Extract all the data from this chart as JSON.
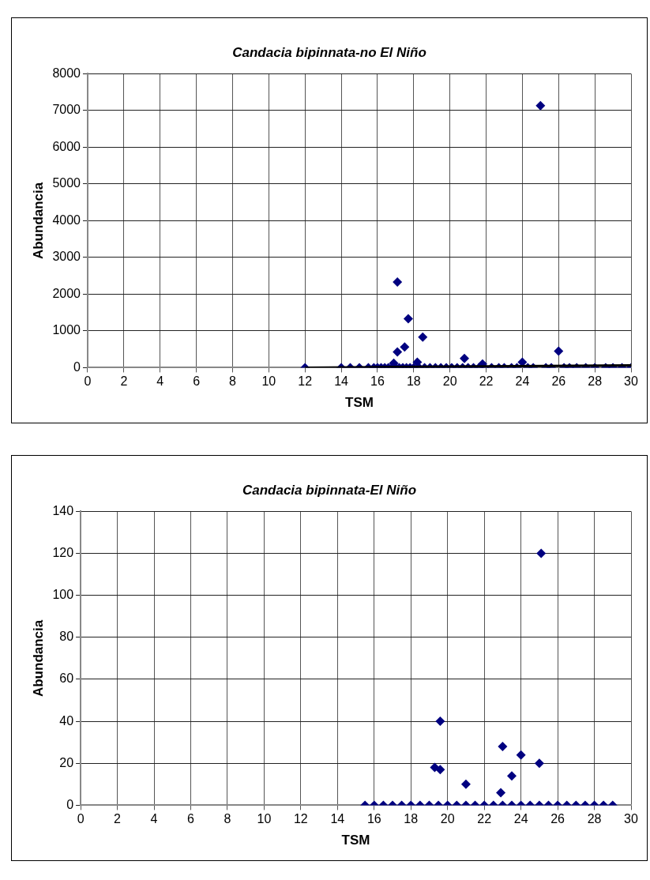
{
  "chart_data": [
    {
      "type": "scatter",
      "title": "Candacia bipinnata-no El Niño",
      "xlabel": "TSM",
      "ylabel": "Abundancia",
      "grid": true,
      "xlim": [
        0,
        30
      ],
      "xticks": [
        0,
        2,
        4,
        6,
        8,
        10,
        12,
        14,
        16,
        18,
        20,
        22,
        24,
        26,
        28,
        30
      ],
      "ylim": [
        0,
        8000
      ],
      "yticks": [
        0,
        1000,
        2000,
        3000,
        4000,
        5000,
        6000,
        7000,
        8000
      ],
      "series": [
        {
          "color": "#000080",
          "marker": "diamond",
          "x": [
            12,
            14,
            14.5,
            15,
            15.5,
            15.8,
            16,
            16.2,
            16.4,
            16.6,
            16.8,
            17,
            17.2,
            17.4,
            17.6,
            17.8,
            18,
            18.3,
            18.6,
            18.9,
            19.2,
            19.5,
            19.8,
            20.1,
            20.4,
            20.7,
            21,
            21.3,
            21.6,
            21.9,
            22.3,
            22.7,
            23,
            23.4,
            23.7,
            24.3,
            24.6,
            25.3,
            25.6,
            26.3,
            26.6,
            27,
            27.5,
            28,
            28.6,
            29,
            29.5,
            30,
            25,
            17.1,
            17.7,
            18.5,
            17.5,
            17.1,
            26,
            20.8,
            24,
            18.2,
            21.8,
            16.9
          ],
          "values": [
            0,
            0,
            0,
            0,
            0,
            0,
            0,
            0,
            0,
            0,
            0,
            0,
            0,
            0,
            0,
            0,
            0,
            0,
            0,
            0,
            0,
            0,
            0,
            0,
            0,
            0,
            0,
            0,
            0,
            0,
            0,
            0,
            0,
            0,
            0,
            0,
            0,
            0,
            0,
            0,
            0,
            0,
            0,
            0,
            0,
            0,
            0,
            0,
            7130,
            2330,
            1330,
            830,
            560,
            430,
            450,
            250,
            150,
            150,
            100,
            120
          ]
        },
        {
          "type": "line",
          "color": "#000000",
          "marker": "none",
          "x": [
            12,
            30
          ],
          "values": [
            0,
            60
          ]
        }
      ]
    },
    {
      "type": "scatter",
      "title": "Candacia bipinnata-El Niño",
      "xlabel": "TSM",
      "ylabel": "Abundancia",
      "marker": "diamond",
      "grid": true,
      "xlim": [
        0,
        30
      ],
      "xticks": [
        0,
        2,
        4,
        6,
        8,
        10,
        12,
        14,
        16,
        18,
        20,
        22,
        24,
        26,
        28,
        30
      ],
      "ylim": [
        0,
        140
      ],
      "yticks": [
        0,
        20,
        40,
        60,
        80,
        100,
        120,
        140
      ],
      "series": [
        {
          "color": "#000080",
          "x": [
            15.5,
            16,
            16.5,
            17,
            17.5,
            18,
            18.5,
            19,
            19.5,
            20,
            20.5,
            21,
            21.5,
            22,
            22.5,
            23,
            23.5,
            24,
            24.5,
            25,
            25.5,
            26,
            26.5,
            27,
            27.5,
            28,
            28.5,
            29,
            19.3,
            19.6,
            19.6,
            21,
            23,
            22.9,
            23.5,
            24,
            25,
            25.1
          ],
          "values": [
            0,
            0,
            0,
            0,
            0,
            0,
            0,
            0,
            0,
            0,
            0,
            0,
            0,
            0,
            0,
            0,
            0,
            0,
            0,
            0,
            0,
            0,
            0,
            0,
            0,
            0,
            0,
            0,
            18,
            40,
            17,
            10,
            28,
            6,
            14,
            24,
            20,
            120
          ]
        }
      ]
    }
  ]
}
